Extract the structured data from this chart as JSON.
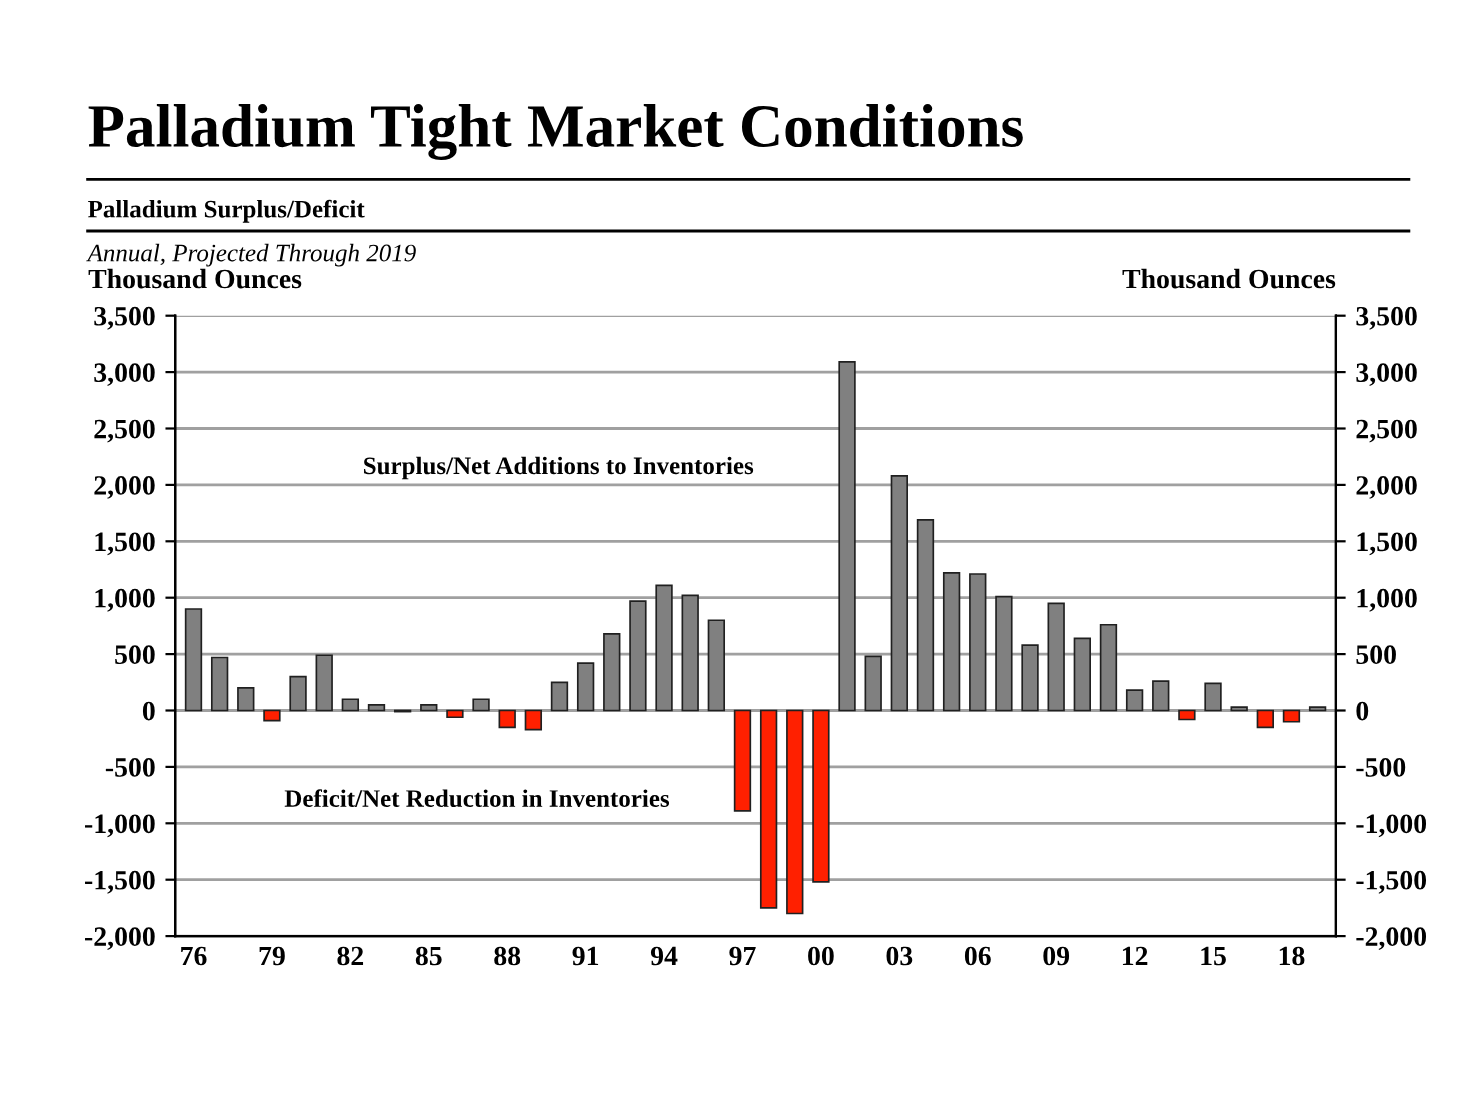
{
  "chart_data": {
    "type": "bar",
    "title": "Palladium Tight Market Conditions",
    "subtitle": "Palladium Surplus/Deficit",
    "annotations": [
      "Annual, Projected Through 2019",
      "Surplus/Net Additions to Inventories",
      "Deficit/Net Reduction in Inventories"
    ],
    "ylabel": "Thousand Ounces",
    "y2label": "Thousand Ounces",
    "categories": [
      "76",
      null,
      null,
      "79",
      null,
      null,
      "82",
      null,
      null,
      "85",
      null,
      null,
      "88",
      null,
      null,
      "91",
      null,
      null,
      "94",
      null,
      null,
      "97",
      null,
      null,
      "00",
      null,
      null,
      "03",
      null,
      null,
      "06",
      null,
      null,
      "09",
      null,
      null,
      "12",
      null,
      null,
      "15",
      null,
      null,
      "18",
      null
    ],
    "values": [
      900,
      470,
      200,
      -90,
      300,
      490,
      100,
      50,
      -10,
      50,
      -60,
      100,
      -150,
      -170,
      250,
      420,
      680,
      970,
      1110,
      1020,
      800,
      -890,
      -1750,
      -1800,
      -1520,
      3090,
      480,
      2080,
      1690,
      1220,
      1210,
      1010,
      580,
      950,
      640,
      760,
      180,
      260,
      -80,
      240,
      30,
      -150,
      -100,
      30
    ],
    "colors": [
      "#808080",
      "#808080",
      "#808080",
      "#ff2000",
      "#808080",
      "#808080",
      "#808080",
      "#808080",
      "#ff2000",
      "#808080",
      "#ff2000",
      "#808080",
      "#ff2000",
      "#ff2000",
      "#808080",
      "#808080",
      "#808080",
      "#808080",
      "#808080",
      "#808080",
      "#808080",
      "#ff2000",
      "#ff2000",
      "#ff2000",
      "#ff2000",
      "#808080",
      "#808080",
      "#808080",
      "#808080",
      "#808080",
      "#808080",
      "#808080",
      "#808080",
      "#808080",
      "#808080",
      "#808080",
      "#808080",
      "#808080",
      "#ff2000",
      "#808080",
      "#808080",
      "#ff2000",
      "#ff2000",
      "#808080"
    ],
    "ylim": [
      -2000,
      3500
    ],
    "yticks": [
      {
        "value": -2000,
        "label": "-2,000"
      },
      {
        "value": -1500,
        "label": "-1,500"
      },
      {
        "value": -1000,
        "label": "-1,000"
      },
      {
        "value": -500,
        "label": "-500"
      },
      0,
      500,
      {
        "value": 1000,
        "label": "1,000"
      },
      {
        "value": 1500,
        "label": "1,500"
      },
      {
        "value": 2000,
        "label": "2,000"
      },
      {
        "value": 2500,
        "label": "2,500"
      },
      {
        "value": 3000,
        "label": "3,000"
      },
      {
        "value": 3500,
        "label": "3,500"
      }
    ],
    "y2lim": [
      -2000,
      3500
    ],
    "y2ticks": [
      {
        "value": -2000,
        "label": "-2,000"
      },
      {
        "value": -1500,
        "label": "-1,500"
      },
      {
        "value": -1000,
        "label": "-1,000"
      },
      {
        "value": -500,
        "label": "-500"
      },
      0,
      500,
      {
        "value": 1000,
        "label": "1,000"
      },
      {
        "value": 1500,
        "label": "1,500"
      },
      {
        "value": 2000,
        "label": "2,000"
      },
      {
        "value": 2500,
        "label": "2,500"
      },
      {
        "value": 3000,
        "label": "3,000"
      },
      {
        "value": 3500,
        "label": "3,500"
      }
    ],
    "grid": "y"
  }
}
